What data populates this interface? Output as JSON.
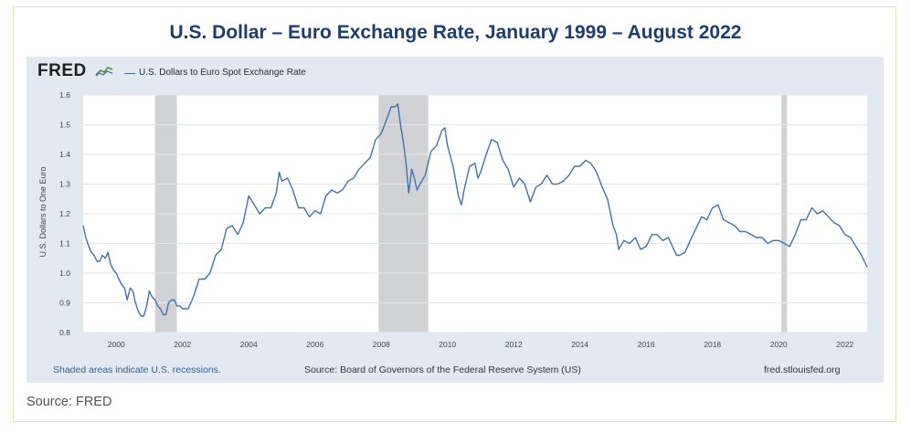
{
  "title": "U.S. Dollar – Euro Exchange Rate, January 1999 – August 2022",
  "source": "Source: FRED",
  "fred": {
    "logo_text": "FRED",
    "series_label": "U.S. Dollars to Euro Spot Exchange Rate",
    "footer_left": "Shaded areas indicate U.S. recessions.",
    "footer_center": "Source: Board of Governors of the Federal Reserve System (US)",
    "footer_right": "fred.stlouisfed.org"
  },
  "colors": {
    "line": "#4472a8",
    "panel": "#e2e9f0",
    "recession": "#d0d2d6",
    "title": "#1d3d6e"
  },
  "chart_data": {
    "type": "line",
    "ylabel": "U.S. Dollars to One Euro",
    "xlim": [
      1999.0,
      2022.67
    ],
    "ylim": [
      0.8,
      1.6
    ],
    "yticks": [
      "1.6",
      "1.5",
      "1.4",
      "1.3",
      "1.2",
      "1.1",
      "1.0",
      "0.9",
      "0.8"
    ],
    "ytick_values": [
      1.6,
      1.5,
      1.4,
      1.3,
      1.2,
      1.1,
      1.0,
      0.9,
      0.8
    ],
    "xticks": [
      "2000",
      "2002",
      "2004",
      "2006",
      "2008",
      "2010",
      "2012",
      "2014",
      "2016",
      "2018",
      "2020",
      "2022"
    ],
    "xtick_values": [
      2000,
      2002,
      2004,
      2006,
      2008,
      2010,
      2012,
      2014,
      2016,
      2018,
      2020,
      2022
    ],
    "recessions": [
      [
        2001.17,
        2001.83
      ],
      [
        2007.92,
        2009.42
      ],
      [
        2020.08,
        2020.25
      ]
    ],
    "grid": "horizontal",
    "series": [
      {
        "x": [
          1999.0,
          1999.08,
          1999.17,
          1999.25,
          1999.33,
          1999.42,
          1999.5,
          1999.58,
          1999.67,
          1999.75,
          1999.83,
          1999.92,
          2000.0,
          2000.08,
          2000.17,
          2000.25,
          2000.33,
          2000.42,
          2000.5,
          2000.58,
          2000.67,
          2000.75,
          2000.83,
          2000.92,
          2001.0,
          2001.08,
          2001.17,
          2001.25,
          2001.33,
          2001.42,
          2001.5,
          2001.58,
          2001.67,
          2001.75,
          2001.83,
          2001.92,
          2002.0,
          2002.17,
          2002.33,
          2002.5,
          2002.67,
          2002.83,
          2003.0,
          2003.17,
          2003.33,
          2003.5,
          2003.67,
          2003.83,
          2004.0,
          2004.17,
          2004.33,
          2004.5,
          2004.67,
          2004.83,
          2004.92,
          2005.0,
          2005.17,
          2005.33,
          2005.5,
          2005.67,
          2005.83,
          2006.0,
          2006.17,
          2006.33,
          2006.5,
          2006.67,
          2006.83,
          2007.0,
          2007.17,
          2007.33,
          2007.5,
          2007.67,
          2007.83,
          2008.0,
          2008.17,
          2008.3,
          2008.42,
          2008.5,
          2008.58,
          2008.67,
          2008.75,
          2008.83,
          2008.92,
          2009.0,
          2009.08,
          2009.17,
          2009.33,
          2009.5,
          2009.67,
          2009.83,
          2009.92,
          2010.0,
          2010.17,
          2010.33,
          2010.42,
          2010.5,
          2010.67,
          2010.83,
          2010.92,
          2011.0,
          2011.17,
          2011.33,
          2011.5,
          2011.67,
          2011.83,
          2012.0,
          2012.17,
          2012.33,
          2012.5,
          2012.67,
          2012.83,
          2013.0,
          2013.17,
          2013.33,
          2013.5,
          2013.67,
          2013.83,
          2014.0,
          2014.17,
          2014.33,
          2014.5,
          2014.67,
          2014.83,
          2015.0,
          2015.1,
          2015.17,
          2015.33,
          2015.5,
          2015.67,
          2015.83,
          2016.0,
          2016.17,
          2016.33,
          2016.5,
          2016.67,
          2016.83,
          2016.92,
          2017.0,
          2017.17,
          2017.33,
          2017.5,
          2017.67,
          2017.83,
          2018.0,
          2018.17,
          2018.33,
          2018.5,
          2018.67,
          2018.83,
          2019.0,
          2019.17,
          2019.33,
          2019.5,
          2019.67,
          2019.83,
          2020.0,
          2020.17,
          2020.33,
          2020.5,
          2020.67,
          2020.83,
          2021.0,
          2021.17,
          2021.33,
          2021.5,
          2021.67,
          2021.83,
          2022.0,
          2022.17,
          2022.33,
          2022.5,
          2022.67
        ],
        "values": [
          1.16,
          1.12,
          1.09,
          1.07,
          1.06,
          1.04,
          1.04,
          1.06,
          1.05,
          1.07,
          1.03,
          1.01,
          1.0,
          0.98,
          0.96,
          0.95,
          0.91,
          0.95,
          0.94,
          0.9,
          0.87,
          0.855,
          0.855,
          0.89,
          0.94,
          0.92,
          0.91,
          0.89,
          0.88,
          0.86,
          0.86,
          0.9,
          0.91,
          0.91,
          0.89,
          0.89,
          0.88,
          0.88,
          0.92,
          0.98,
          0.98,
          1.0,
          1.06,
          1.08,
          1.15,
          1.16,
          1.13,
          1.17,
          1.26,
          1.23,
          1.2,
          1.22,
          1.22,
          1.27,
          1.34,
          1.31,
          1.32,
          1.28,
          1.22,
          1.22,
          1.19,
          1.21,
          1.2,
          1.26,
          1.28,
          1.27,
          1.28,
          1.31,
          1.32,
          1.35,
          1.37,
          1.39,
          1.45,
          1.47,
          1.52,
          1.56,
          1.56,
          1.57,
          1.5,
          1.44,
          1.37,
          1.27,
          1.35,
          1.32,
          1.28,
          1.3,
          1.33,
          1.41,
          1.43,
          1.48,
          1.49,
          1.43,
          1.36,
          1.26,
          1.23,
          1.28,
          1.36,
          1.37,
          1.32,
          1.34,
          1.4,
          1.45,
          1.44,
          1.38,
          1.35,
          1.29,
          1.32,
          1.3,
          1.24,
          1.29,
          1.3,
          1.33,
          1.3,
          1.3,
          1.31,
          1.33,
          1.36,
          1.36,
          1.38,
          1.37,
          1.34,
          1.29,
          1.25,
          1.16,
          1.13,
          1.08,
          1.11,
          1.1,
          1.12,
          1.08,
          1.09,
          1.13,
          1.13,
          1.11,
          1.12,
          1.08,
          1.06,
          1.06,
          1.07,
          1.11,
          1.15,
          1.19,
          1.18,
          1.22,
          1.23,
          1.18,
          1.17,
          1.16,
          1.14,
          1.14,
          1.13,
          1.12,
          1.12,
          1.1,
          1.11,
          1.11,
          1.1,
          1.09,
          1.13,
          1.18,
          1.18,
          1.22,
          1.2,
          1.21,
          1.19,
          1.17,
          1.16,
          1.13,
          1.12,
          1.09,
          1.06,
          1.02
        ]
      }
    ]
  }
}
